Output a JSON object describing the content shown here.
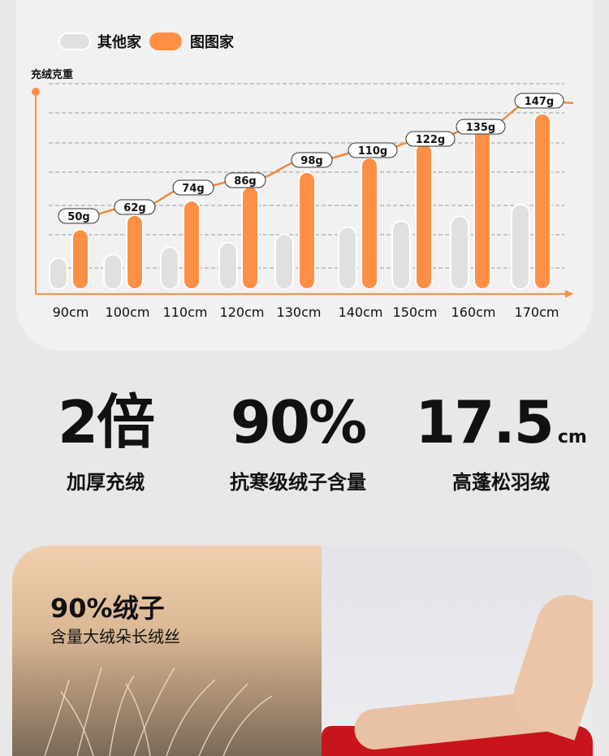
{
  "chart_data": {
    "type": "bar",
    "ylabel": "充绒克重",
    "categories": [
      "90cm",
      "100cm",
      "110cm",
      "120cm",
      "130cm",
      "140cm",
      "150cm",
      "160cm",
      "170cm"
    ],
    "series": [
      {
        "name": "其他家",
        "color": "#e0e0e0",
        "values": [
          26,
          29,
          35,
          39,
          46,
          52,
          57,
          61,
          71
        ]
      },
      {
        "name": "图图家",
        "color": "#ff8f45",
        "values": [
          50,
          62,
          74,
          86,
          98,
          110,
          122,
          135,
          147
        ]
      }
    ],
    "data_labels": [
      "50g",
      "62g",
      "74g",
      "86g",
      "98g",
      "110g",
      "122g",
      "135g",
      "147g"
    ],
    "trend_line": true,
    "grid": true,
    "legend": "top-left"
  },
  "stats": [
    {
      "value": "2倍",
      "unit": "",
      "label": "加厚充绒"
    },
    {
      "value": "90%",
      "unit": "",
      "label": "抗寒级绒子含量"
    },
    {
      "value": "17.5",
      "unit": "cm",
      "label": "高蓬松羽绒"
    }
  ],
  "feature": {
    "title": "90%绒子",
    "subtitle": "含量大绒朵长绒丝"
  }
}
